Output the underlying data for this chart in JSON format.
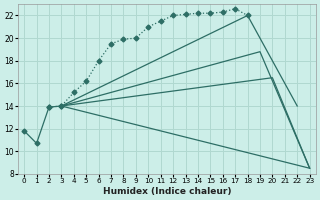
{
  "xlabel": "Humidex (Indice chaleur)",
  "bg_color": "#cceee8",
  "line_color": "#2d6e65",
  "grid_color": "#b0d8d0",
  "xlim": [
    -0.5,
    23.5
  ],
  "ylim": [
    8,
    23.0
  ],
  "yticks": [
    8,
    10,
    12,
    14,
    16,
    18,
    20,
    22
  ],
  "xticks": [
    0,
    1,
    2,
    3,
    4,
    5,
    6,
    7,
    8,
    9,
    10,
    11,
    12,
    13,
    14,
    15,
    16,
    17,
    18,
    19,
    20,
    21,
    22,
    23
  ],
  "lines": [
    {
      "x": [
        2,
        3,
        4,
        5,
        6,
        7,
        8,
        9,
        10,
        11,
        12,
        13,
        14,
        15,
        16,
        17,
        18
      ],
      "y": [
        13.9,
        14.0,
        15.2,
        16.2,
        18.0,
        19.5,
        19.9,
        20.0,
        21.0,
        21.5,
        22.0,
        22.1,
        22.2,
        22.2,
        22.3,
        22.6,
        22.0
      ],
      "marker": true,
      "style": ":"
    },
    {
      "x": [
        3,
        18,
        22
      ],
      "y": [
        14.0,
        22.0,
        14.0
      ],
      "marker": false,
      "style": "-"
    },
    {
      "x": [
        3,
        19,
        23
      ],
      "y": [
        14.0,
        18.8,
        8.5
      ],
      "marker": false,
      "style": "-"
    },
    {
      "x": [
        3,
        20,
        23
      ],
      "y": [
        14.0,
        16.5,
        8.5
      ],
      "marker": false,
      "style": "-"
    },
    {
      "x": [
        3,
        23
      ],
      "y": [
        14.0,
        8.5
      ],
      "marker": false,
      "style": "-"
    },
    {
      "comment": "short line at start: 0,11.8 -> 1,10.7 -> 2,13.9 -> 3,14",
      "x": [
        0,
        1,
        2,
        3
      ],
      "y": [
        11.8,
        10.7,
        13.9,
        14.0
      ],
      "marker": true,
      "style": "-"
    }
  ]
}
